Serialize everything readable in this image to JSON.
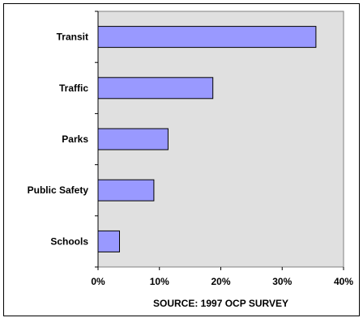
{
  "chart_data": {
    "type": "bar",
    "orientation": "horizontal",
    "categories": [
      "Transit",
      "Traffic",
      "Parks",
      "Public Safety",
      "Schools"
    ],
    "values": [
      35.5,
      18.7,
      11.4,
      9.1,
      3.5
    ],
    "value_unit": "percent",
    "xlim": [
      0,
      40
    ],
    "x_ticks": [
      "0%",
      "10%",
      "20%",
      "30%",
      "40%"
    ],
    "xlabel": "SOURCE: 1997 OCP SURVEY",
    "ylabel": "",
    "title": "",
    "grid": false,
    "legend": "none",
    "colors": {
      "bar_fill": "#9999ff",
      "bar_stroke": "#000000",
      "plot_background": "#e0e0e0"
    }
  }
}
